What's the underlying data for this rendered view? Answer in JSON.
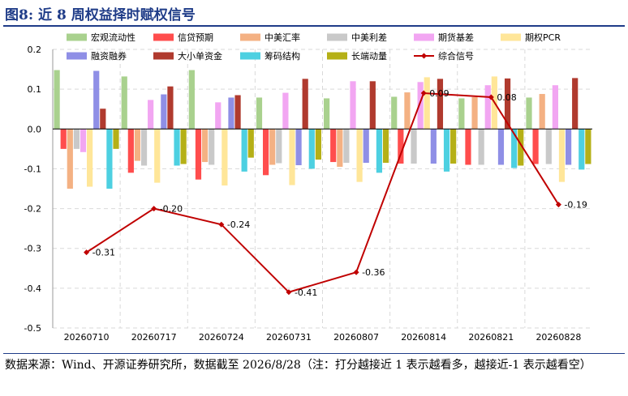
{
  "header": {
    "title": "图8:  近 8 周权益择时赋权信号"
  },
  "footer": {
    "source": "数据来源：Wind、开源证券研究所，数据截至 2026/8/28（注：打分越接近 1 表示越看多，越接近-1 表示越看空）"
  },
  "chart_data": {
    "type": "bar",
    "title": "",
    "xlabel": "",
    "ylabel": "",
    "ylim": [
      -0.5,
      0.2
    ],
    "yticks": [
      -0.5,
      -0.4,
      -0.3,
      -0.2,
      -0.1,
      0.0,
      0.1,
      0.2
    ],
    "ytick_labels": [
      "-0.5",
      "-0.4",
      "-0.3",
      "-0.2",
      "-0.1",
      "0.0",
      "0.1",
      "0.2"
    ],
    "grid": true,
    "legend_position": "top",
    "categories": [
      "20260710",
      "20260717",
      "20260724",
      "20260731",
      "20260807",
      "20260814",
      "20260821",
      "20260828"
    ],
    "series": [
      {
        "name": "宏观流动性",
        "color": "#a9d18e",
        "values": [
          0.148,
          0.132,
          0.148,
          0.079,
          0.077,
          0.081,
          0.077,
          0.079
        ]
      },
      {
        "name": "信贷预期",
        "color": "#ff4d4d",
        "values": [
          -0.05,
          -0.11,
          -0.127,
          -0.116,
          -0.083,
          -0.087,
          -0.09,
          -0.088
        ]
      },
      {
        "name": "中美汇率",
        "color": "#f4b183",
        "values": [
          -0.15,
          -0.08,
          -0.083,
          -0.09,
          -0.095,
          0.092,
          0.08,
          0.088
        ]
      },
      {
        "name": "中美利差",
        "color": "#c9c9c9",
        "values": [
          -0.05,
          -0.092,
          -0.09,
          -0.086,
          -0.085,
          -0.087,
          -0.09,
          -0.088
        ]
      },
      {
        "name": "期货基差",
        "color": "#f2a6f2",
        "values": [
          -0.058,
          0.073,
          0.067,
          0.091,
          0.12,
          0.118,
          0.11,
          0.11
        ]
      },
      {
        "name": "期权PCR",
        "color": "#ffe699",
        "values": [
          -0.145,
          -0.135,
          -0.142,
          -0.141,
          -0.133,
          0.13,
          0.132,
          -0.133
        ]
      },
      {
        "name": "融资融券",
        "color": "#8f8fe6",
        "values": [
          0.146,
          0.087,
          0.079,
          -0.091,
          -0.085,
          -0.087,
          -0.09,
          -0.09
        ]
      },
      {
        "name": "大小单资金",
        "color": "#b03a2e",
        "values": [
          0.051,
          0.107,
          0.085,
          0.126,
          0.12,
          0.126,
          0.127,
          0.128
        ]
      },
      {
        "name": "筹码结构",
        "color": "#4dd0e1",
        "values": [
          -0.15,
          -0.092,
          -0.107,
          -0.1,
          -0.11,
          -0.107,
          -0.098,
          -0.102
        ]
      },
      {
        "name": "长端动量",
        "color": "#b5b017",
        "values": [
          -0.05,
          -0.088,
          -0.072,
          -0.077,
          -0.085,
          -0.087,
          -0.092,
          -0.088
        ]
      }
    ],
    "line_series": {
      "name": "综合信号",
      "color": "#c00000",
      "values": [
        -0.31,
        -0.2,
        -0.24,
        -0.41,
        -0.36,
        0.09,
        0.08,
        -0.19
      ],
      "labels": [
        "-0.31",
        "-0.20",
        "-0.24",
        "-0.41",
        "-0.36",
        "0.09",
        "0.08",
        "-0.19"
      ]
    }
  }
}
